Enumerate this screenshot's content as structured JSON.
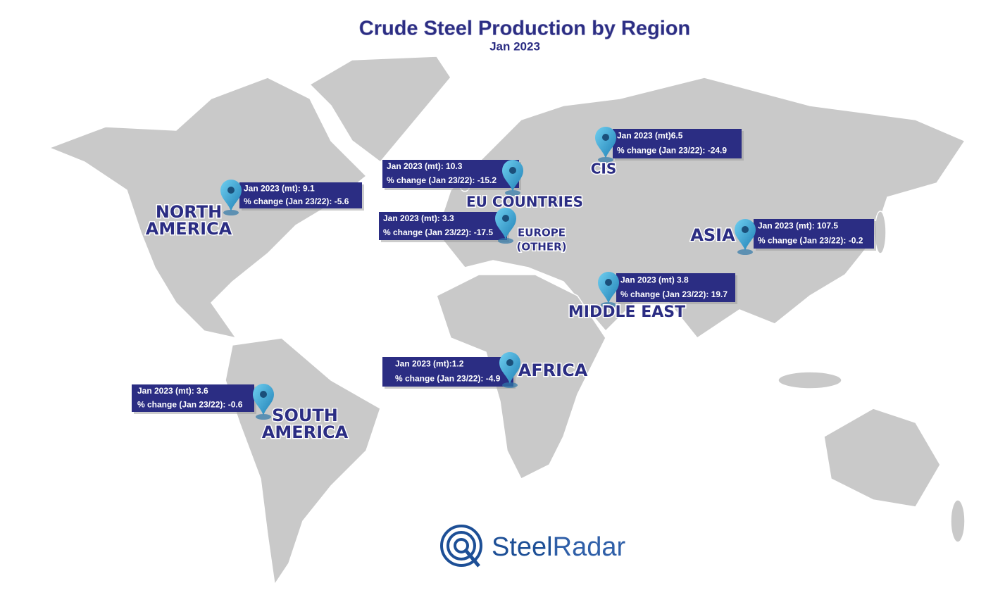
{
  "title": "Crude Steel Production by Region",
  "subtitle": "Jan 2023",
  "regions": [
    {
      "name_lines": [
        "NORTH",
        "AMERICA"
      ],
      "lines": [
        "Jan 2023 (mt): 9.1",
        "% change (Jan 23/22): -5.6"
      ]
    },
    {
      "name_lines": [
        "EU COUNTRIES"
      ],
      "lines": [
        "Jan 2023 (mt): 10.3",
        "% change (Jan 23/22): -15.2"
      ]
    },
    {
      "name_lines": [
        "EUROPE",
        "(OTHER)"
      ],
      "lines": [
        "Jan 2023 (mt): 3.3",
        "% change (Jan 23/22): -17.5"
      ]
    },
    {
      "name_lines": [
        "CIS"
      ],
      "lines": [
        "Jan 2023 (mt)6.5",
        "% change (Jan 23/22): -24.9"
      ]
    },
    {
      "name_lines": [
        "ASIA"
      ],
      "lines": [
        "Jan 2023 (mt): 107.5",
        "% change (Jan 23/22): -0.2"
      ]
    },
    {
      "name_lines": [
        "MIDDLE EAST"
      ],
      "lines": [
        "Jan 2023 (mt) 3.8",
        "% change (Jan 23/22): 19.7"
      ]
    },
    {
      "name_lines": [
        "AFRICA"
      ],
      "lines": [
        "Jan 2023 (mt):1.2",
        "% change (Jan 23/22): -4.9"
      ]
    },
    {
      "name_lines": [
        "SOUTH",
        "AMERICA"
      ],
      "lines": [
        "Jan 2023 (mt): 3.6",
        "% change (Jan 23/22): -0.6"
      ]
    }
  ],
  "logo": {
    "first": "Steel",
    "second": "Radar"
  }
}
